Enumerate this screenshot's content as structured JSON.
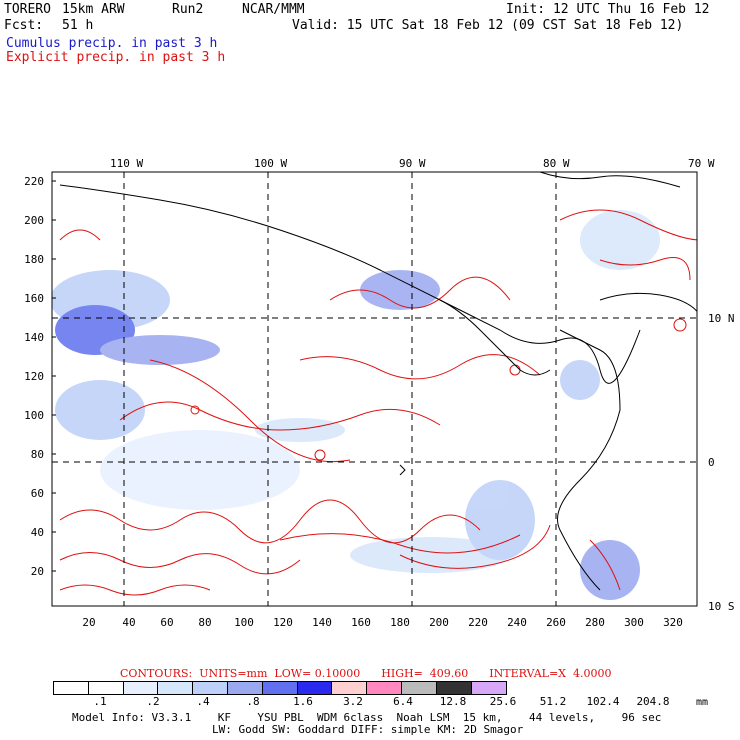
{
  "header": {
    "model": "TORERO",
    "resolution": "15km ARW",
    "run": "Run2",
    "org": "NCAR/MMM",
    "init": "Init: 12 UTC Thu 16 Feb 12",
    "fcst_label": "Fcst:",
    "fcst_value": "51 h",
    "valid": "Valid: 15 UTC Sat 18 Feb 12 (09 CST Sat 18 Feb 12)"
  },
  "legend": {
    "cumulus": "Cumulus precip. in past 3 h",
    "explicit": "Explicit precip. in past 3 h",
    "cumulus_color": "#1a1acc",
    "explicit_color": "#dd1111"
  },
  "axes": {
    "y_ticks": [
      "220",
      "200",
      "180",
      "160",
      "140",
      "120",
      "100",
      "80",
      "60",
      "40",
      "20"
    ],
    "x_ticks": [
      "20",
      "40",
      "60",
      "80",
      "100",
      "120",
      "140",
      "160",
      "180",
      "200",
      "220",
      "240",
      "260",
      "280",
      "300",
      "320"
    ],
    "lon_labels": [
      "110 W",
      "100 W",
      "90 W",
      "80 W",
      "70 W"
    ],
    "lat_labels": [
      "10 N",
      "0",
      "10 S"
    ]
  },
  "contours": {
    "label": "CONTOURS:",
    "units": "UNITS=mm",
    "low": "LOW= 0.10000",
    "high": "HIGH=  409.60",
    "interval": "INTERVAL=X  4.0000"
  },
  "colorbar": {
    "labels": [
      ".1",
      ".2",
      ".4",
      ".8",
      "1.6",
      "3.2",
      "6.4",
      "12.8",
      "25.6",
      "51.2",
      "102.4",
      "204.8"
    ],
    "colors": [
      "#ffffff",
      "#ffffff",
      "#e8f0ff",
      "#d6e6fb",
      "#bcd0f8",
      "#9aa8f0",
      "#6070ee",
      "#2a2aee",
      "#ffd0d0",
      "#ff88c0",
      "#bbbbbb",
      "#333333",
      "#d8a8f8"
    ],
    "unit": "mm"
  },
  "model_info": {
    "line1": "Model Info: V3.3.1    KF    YSU PBL  WDM 6class  Noah LSM  15 km,    44 levels,    96 sec",
    "line2": "LW: Godd SW: Goddard DIFF: simple KM: 2D Smagor"
  }
}
